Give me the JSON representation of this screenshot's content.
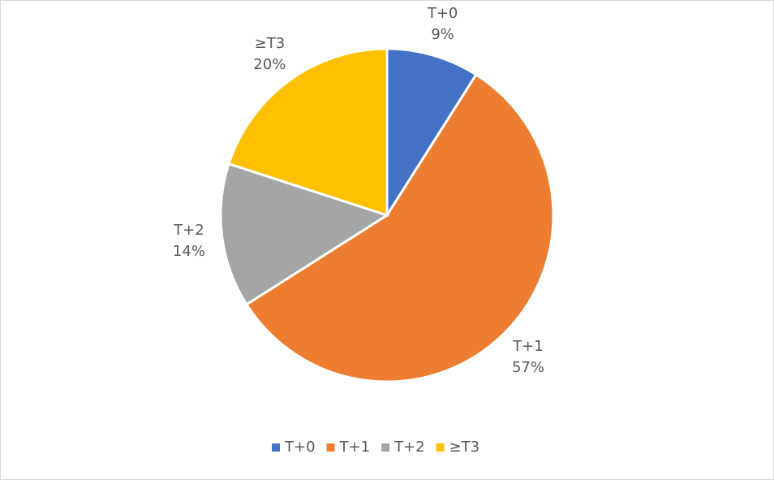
{
  "chart_data": {
    "type": "pie",
    "categories": [
      "T+0",
      "T+1",
      "T+2",
      "≥T3"
    ],
    "values": [
      9,
      57,
      14,
      20
    ],
    "value_labels": [
      "9%",
      "57%",
      "14%",
      "20%"
    ],
    "colors": [
      "#4472c4",
      "#ed7d31",
      "#a5a5a5",
      "#ffc000"
    ],
    "legend": "bottom"
  }
}
